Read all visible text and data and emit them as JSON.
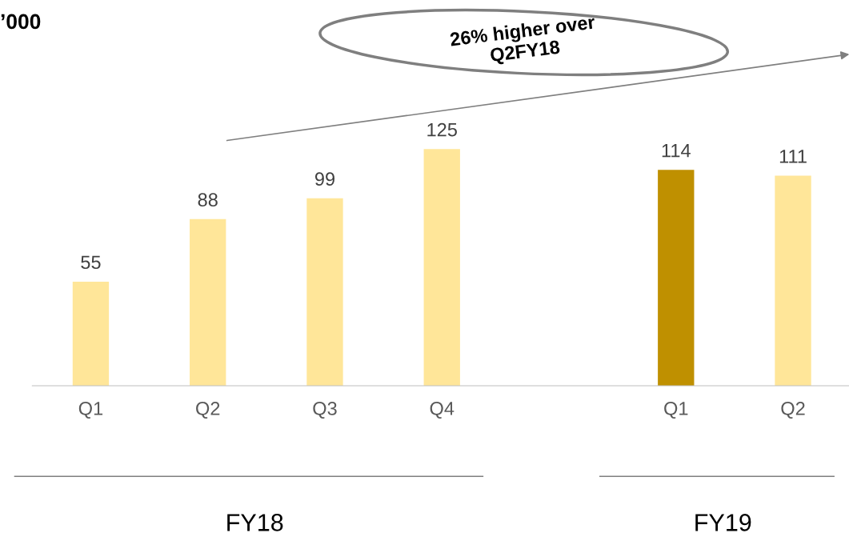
{
  "chart_data": {
    "type": "bar",
    "title": "’000",
    "categories": [
      "Q1",
      "Q2",
      "Q3",
      "Q4",
      null,
      "Q1",
      "Q2"
    ],
    "values": [
      55,
      88,
      99,
      125,
      null,
      114,
      111
    ],
    "colors": [
      "#ffe699",
      "#ffe699",
      "#ffe699",
      "#ffe699",
      "#ffe699",
      "#bf9000",
      "#ffe699"
    ],
    "tick_labels": "x",
    "data_labels": true,
    "grid": false,
    "legend": false,
    "annotations": [
      "26% higher over\nQ2FY18",
      "FY18",
      "FY19"
    ]
  }
}
